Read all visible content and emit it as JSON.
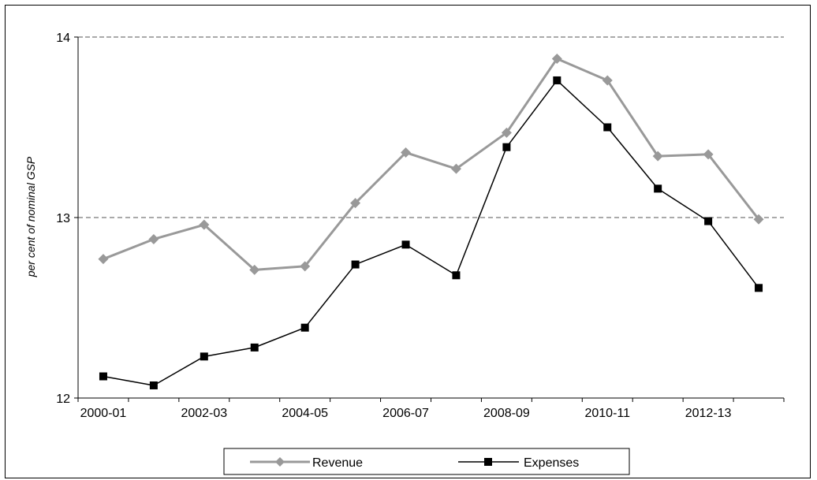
{
  "chart_data": {
    "type": "line",
    "title": "",
    "xlabel": "",
    "ylabel": "per cent of nominal GSP",
    "ylim": [
      12,
      14
    ],
    "yticks": [
      12,
      13,
      14
    ],
    "x": [
      "2000-01",
      "2001-02",
      "2002-03",
      "2003-04",
      "2004-05",
      "2005-06",
      "2006-07",
      "2007-08",
      "2008-09",
      "2009-10",
      "2010-11",
      "2011-12",
      "2012-13",
      "2013-14"
    ],
    "xtick_labels": [
      "2000-01",
      "2002-03",
      "2004-05",
      "2006-07",
      "2008-09",
      "2010-11",
      "2012-13"
    ],
    "grid": "dashed horizontal lines at 13 and 14",
    "legend_position": "bottom",
    "series": [
      {
        "name": "Revenue",
        "color": "#999999",
        "marker": "diamond",
        "values": [
          12.77,
          12.88,
          12.96,
          12.71,
          12.73,
          13.08,
          13.36,
          13.27,
          13.47,
          13.88,
          13.76,
          13.34,
          13.35,
          12.99
        ]
      },
      {
        "name": "Expenses",
        "color": "#000000",
        "marker": "square",
        "values": [
          12.12,
          12.07,
          12.23,
          12.28,
          12.39,
          12.74,
          12.85,
          12.68,
          13.39,
          13.76,
          13.5,
          13.16,
          12.98,
          12.61
        ]
      }
    ]
  }
}
